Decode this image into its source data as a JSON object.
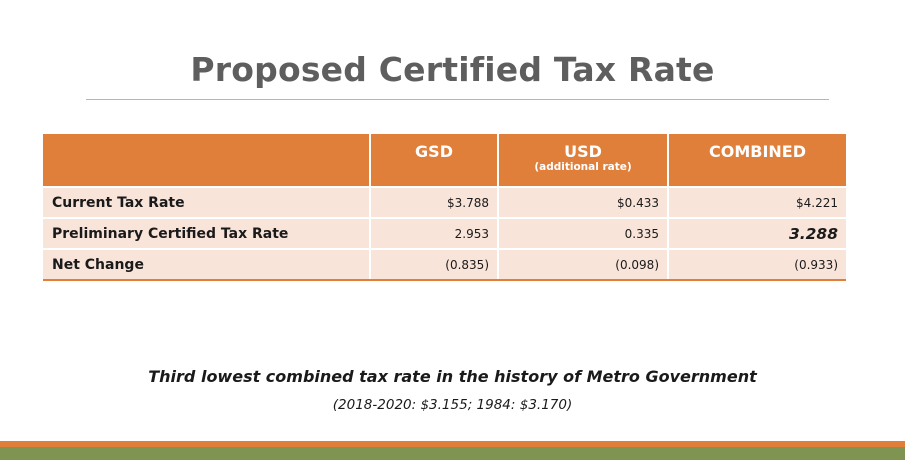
{
  "title": "Proposed Certified Tax Rate",
  "table": {
    "headers": {
      "gsd": "GSD",
      "usd": "USD",
      "usd_sub": "(additional rate)",
      "combined": "COMBINED"
    },
    "rows": [
      {
        "label": "Current Tax Rate",
        "gsd": "$3.788",
        "usd": "$0.433",
        "combined": "$4.221"
      },
      {
        "label": "Preliminary Certified Tax Rate",
        "gsd": "2.953",
        "usd": "0.335",
        "combined": "3.288"
      },
      {
        "label": "Net Change",
        "gsd": "(0.835)",
        "usd": "(0.098)",
        "combined": "(0.933)"
      }
    ]
  },
  "note": {
    "line1": "Third lowest combined tax rate in the history of Metro Government",
    "line2": "(2018-2020: $3.155; 1984: $3.170)"
  },
  "colors": {
    "header_bg": "#e07f3a",
    "cell_bg": "#f9e4d9",
    "title": "#5e5e5e",
    "footer_orange": "#e07f3a",
    "footer_green": "#7f9450"
  }
}
